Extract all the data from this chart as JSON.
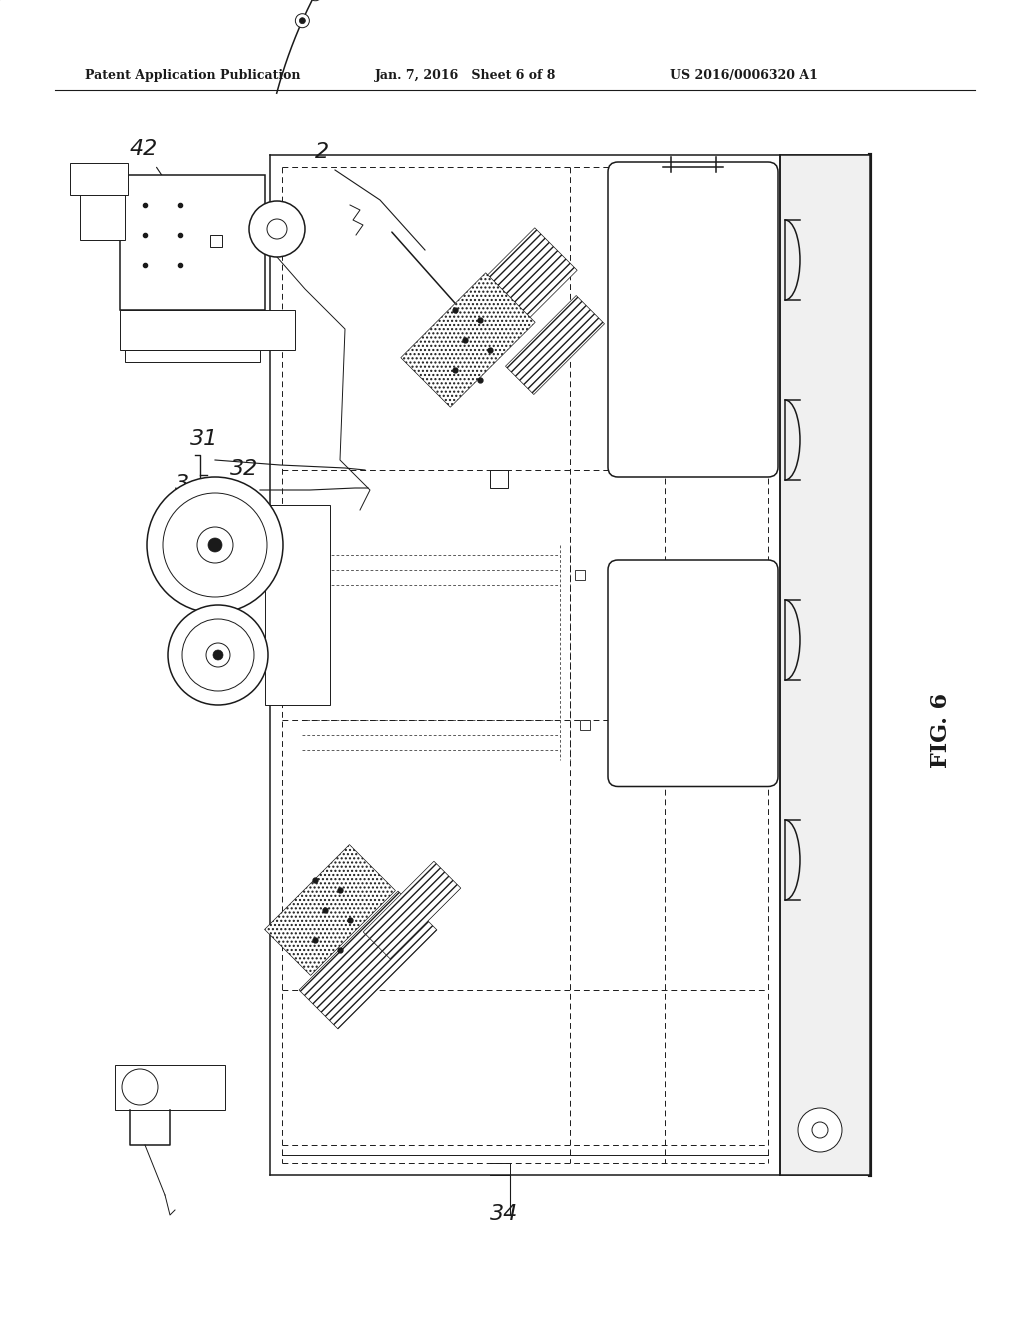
{
  "bg_color": "#ffffff",
  "line_color": "#1a1a1a",
  "header_text": "Patent Application Publication",
  "header_date": "Jan. 7, 2016   Sheet 6 of 8",
  "header_patent": "US 2016/0006320 A1",
  "fig_label": "FIG. 6"
}
